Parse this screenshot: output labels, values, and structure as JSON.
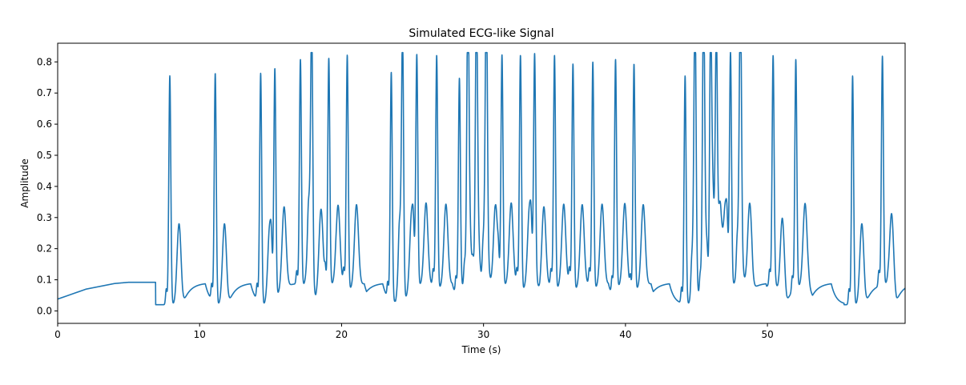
{
  "chart_data": {
    "type": "line",
    "title": "Simulated ECG-like Signal",
    "xlabel": "Time (s)",
    "ylabel": "Amplitude",
    "xlim": [
      0,
      59.7
    ],
    "ylim": [
      -0.04,
      0.86
    ],
    "xticks": [
      0,
      10,
      20,
      30,
      40,
      50
    ],
    "yticks": [
      0.0,
      0.1,
      0.2,
      0.3,
      0.4,
      0.5,
      0.6,
      0.7,
      0.8
    ],
    "grid": false,
    "legend": "none",
    "series": [
      {
        "color": "#1f77b4",
        "baseline": {
          "x": [
            0,
            2,
            4,
            5,
            6.9
          ],
          "y": [
            0.038,
            0.07,
            0.088,
            0.092,
            0.092
          ]
        },
        "beats": [
          {
            "t": 7.9,
            "peak": 0.815
          },
          {
            "t": 11.1,
            "peak": 0.815
          },
          {
            "t": 14.3,
            "peak": 0.815
          },
          {
            "t": 15.3,
            "peak": 0.815
          },
          {
            "t": 17.1,
            "peak": 0.81
          },
          {
            "t": 17.9,
            "peak": 0.81
          },
          {
            "t": 19.1,
            "peak": 0.81
          },
          {
            "t": 20.4,
            "peak": 0.815
          },
          {
            "t": 23.5,
            "peak": 0.815
          },
          {
            "t": 24.3,
            "peak": 0.81
          },
          {
            "t": 25.3,
            "peak": 0.815
          },
          {
            "t": 26.7,
            "peak": 0.815
          },
          {
            "t": 28.3,
            "peak": 0.755
          },
          {
            "t": 28.9,
            "peak": 0.81
          },
          {
            "t": 29.5,
            "peak": 0.815
          },
          {
            "t": 30.2,
            "peak": 0.815
          },
          {
            "t": 31.3,
            "peak": 0.815
          },
          {
            "t": 32.6,
            "peak": 0.815
          },
          {
            "t": 33.6,
            "peak": 0.81
          },
          {
            "t": 35.0,
            "peak": 0.815
          },
          {
            "t": 36.3,
            "peak": 0.815
          },
          {
            "t": 37.7,
            "peak": 0.815
          },
          {
            "t": 39.3,
            "peak": 0.815
          },
          {
            "t": 40.6,
            "peak": 0.815
          },
          {
            "t": 44.2,
            "peak": 0.815
          },
          {
            "t": 44.9,
            "peak": 0.81
          },
          {
            "t": 45.5,
            "peak": 0.81
          },
          {
            "t": 46.0,
            "peak": 0.81
          },
          {
            "t": 46.4,
            "peak": 0.815
          },
          {
            "t": 47.4,
            "peak": 0.815
          },
          {
            "t": 48.1,
            "peak": 0.81
          },
          {
            "t": 50.4,
            "peak": 0.815
          },
          {
            "t": 52.0,
            "peak": 0.815
          },
          {
            "t": 56.0,
            "peak": 0.815
          },
          {
            "t": 58.1,
            "peak": 0.815
          }
        ]
      }
    ]
  }
}
